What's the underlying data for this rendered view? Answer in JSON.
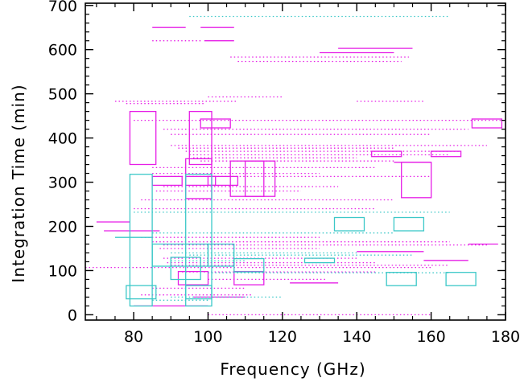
{
  "colors": {
    "magenta": "#e61ee6",
    "cyan": "#3cc8c8",
    "axis": "#000000"
  },
  "chart_data": {
    "type": "scatter",
    "title": "",
    "xlabel": "Frequency (GHz)",
    "ylabel": "Integration Time (min)",
    "xlim": [
      67,
      180
    ],
    "ylim": [
      -12,
      705
    ],
    "xticks": [
      "80",
      "100",
      "120",
      "140",
      "160",
      "180"
    ],
    "xtick_values": [
      80,
      100,
      120,
      140,
      160,
      180
    ],
    "yticks": [
      "0",
      "100",
      "200",
      "300",
      "400",
      "500",
      "600",
      "700"
    ],
    "ytick_values": [
      0,
      100,
      200,
      300,
      400,
      500,
      600,
      700
    ],
    "grid": false,
    "legend": "none",
    "series": [
      {
        "color": "magenta",
        "lines": [
          {
            "x1": 70,
            "x2": 79,
            "y": 210,
            "dashed": false
          },
          {
            "x1": 72,
            "x2": 87,
            "y": 190,
            "dashed": false
          },
          {
            "x1": 75,
            "x2": 108,
            "y": 483,
            "dashed": true
          },
          {
            "x1": 78,
            "x2": 99,
            "y": 478,
            "dashed": true
          },
          {
            "x1": 85,
            "x2": 94,
            "y": 650,
            "dashed": false
          },
          {
            "x1": 98,
            "x2": 107,
            "y": 650,
            "dashed": false
          },
          {
            "x1": 85,
            "x2": 98,
            "y": 620,
            "dashed": true
          },
          {
            "x1": 99,
            "x2": 107,
            "y": 620,
            "dashed": false
          },
          {
            "x1": 106,
            "x2": 154,
            "y": 583,
            "dashed": true
          },
          {
            "x1": 108,
            "x2": 152,
            "y": 573,
            "dashed": true
          },
          {
            "x1": 130,
            "x2": 150,
            "y": 593,
            "dashed": false
          },
          {
            "x1": 135,
            "x2": 155,
            "y": 603,
            "dashed": false
          },
          {
            "x1": 100,
            "x2": 120,
            "y": 493,
            "dashed": true
          },
          {
            "x1": 140,
            "x2": 158,
            "y": 483,
            "dashed": true
          },
          {
            "x1": 80,
            "x2": 180,
            "y": 440,
            "dashed": true
          },
          {
            "x1": 88,
            "x2": 170,
            "y": 420,
            "dashed": true
          },
          {
            "x1": 90,
            "x2": 160,
            "y": 408,
            "dashed": true
          },
          {
            "x1": 90,
            "x2": 175,
            "y": 383,
            "dashed": true
          },
          {
            "x1": 92,
            "x2": 150,
            "y": 377,
            "dashed": true
          },
          {
            "x1": 94,
            "x2": 168,
            "y": 370,
            "dashed": true
          },
          {
            "x1": 95,
            "x2": 165,
            "y": 362,
            "dashed": true
          },
          {
            "x1": 96,
            "x2": 140,
            "y": 355,
            "dashed": true
          },
          {
            "x1": 98,
            "x2": 150,
            "y": 348,
            "dashed": true
          },
          {
            "x1": 85,
            "x2": 145,
            "y": 333,
            "dashed": true
          },
          {
            "x1": 85,
            "x2": 130,
            "y": 320,
            "dashed": true
          },
          {
            "x1": 90,
            "x2": 160,
            "y": 313,
            "dashed": true
          },
          {
            "x1": 88,
            "x2": 135,
            "y": 290,
            "dashed": true
          },
          {
            "x1": 86,
            "x2": 125,
            "y": 280,
            "dashed": true
          },
          {
            "x1": 82,
            "x2": 150,
            "y": 260,
            "dashed": true
          },
          {
            "x1": 80,
            "x2": 145,
            "y": 240,
            "dashed": true
          },
          {
            "x1": 82,
            "x2": 130,
            "y": 175,
            "dashed": true
          },
          {
            "x1": 85,
            "x2": 165,
            "y": 165,
            "dashed": true
          },
          {
            "x1": 88,
            "x2": 175,
            "y": 158,
            "dashed": true
          },
          {
            "x1": 87,
            "x2": 130,
            "y": 150,
            "dashed": true
          },
          {
            "x1": 88,
            "x2": 140,
            "y": 128,
            "dashed": true
          },
          {
            "x1": 89,
            "x2": 145,
            "y": 118,
            "dashed": true
          },
          {
            "x1": 90,
            "x2": 165,
            "y": 112,
            "dashed": true
          },
          {
            "x1": 67,
            "x2": 160,
            "y": 107,
            "dashed": true
          },
          {
            "x1": 93,
            "x2": 145,
            "y": 97,
            "dashed": true
          },
          {
            "x1": 100,
            "x2": 132,
            "y": 80,
            "dashed": true
          },
          {
            "x1": 122,
            "x2": 135,
            "y": 72,
            "dashed": false
          },
          {
            "x1": 85,
            "x2": 110,
            "y": 60,
            "dashed": true
          },
          {
            "x1": 82,
            "x2": 112,
            "y": 45,
            "dashed": true
          },
          {
            "x1": 80,
            "x2": 100,
            "y": 20,
            "dashed": false
          },
          {
            "x1": 96,
            "x2": 110,
            "y": 40,
            "dashed": false
          },
          {
            "x1": 100,
            "x2": 160,
            "y": 0,
            "dashed": true
          },
          {
            "x1": 150,
            "x2": 160,
            "y": 345,
            "dashed": false
          },
          {
            "x1": 140,
            "x2": 158,
            "y": 143,
            "dashed": false
          },
          {
            "x1": 158,
            "x2": 170,
            "y": 123,
            "dashed": false
          },
          {
            "x1": 170,
            "x2": 178,
            "y": 160,
            "dashed": false
          }
        ],
        "boxes": [
          {
            "x1": 79,
            "x2": 86,
            "y1": 340,
            "y2": 460
          },
          {
            "x1": 95,
            "x2": 101,
            "y1": 340,
            "y2": 460
          },
          {
            "x1": 98,
            "x2": 106,
            "y1": 423,
            "y2": 443
          },
          {
            "x1": 171,
            "x2": 179,
            "y1": 423,
            "y2": 443
          },
          {
            "x1": 85,
            "x2": 93,
            "y1": 293,
            "y2": 313
          },
          {
            "x1": 94,
            "x2": 102,
            "y1": 293,
            "y2": 313
          },
          {
            "x1": 100,
            "x2": 108,
            "y1": 293,
            "y2": 313
          },
          {
            "x1": 94,
            "x2": 101,
            "y1": 263,
            "y2": 353
          },
          {
            "x1": 106,
            "x2": 115,
            "y1": 268,
            "y2": 348
          },
          {
            "x1": 110,
            "x2": 118,
            "y1": 268,
            "y2": 348
          },
          {
            "x1": 152,
            "x2": 160,
            "y1": 265,
            "y2": 345
          },
          {
            "x1": 144,
            "x2": 152,
            "y1": 358,
            "y2": 370
          },
          {
            "x1": 160,
            "x2": 168,
            "y1": 358,
            "y2": 370
          },
          {
            "x1": 92,
            "x2": 100,
            "y1": 68,
            "y2": 98
          },
          {
            "x1": 107,
            "x2": 115,
            "y1": 68,
            "y2": 98
          }
        ]
      },
      {
        "color": "cyan",
        "lines": [
          {
            "x1": 95,
            "x2": 165,
            "y": 675,
            "dashed": true
          },
          {
            "x1": 75,
            "x2": 85,
            "y": 175,
            "dashed": false
          },
          {
            "x1": 80,
            "x2": 165,
            "y": 232,
            "dashed": true
          },
          {
            "x1": 85,
            "x2": 150,
            "y": 185,
            "dashed": true
          },
          {
            "x1": 90,
            "x2": 140,
            "y": 140,
            "dashed": true
          },
          {
            "x1": 95,
            "x2": 155,
            "y": 135,
            "dashed": true
          },
          {
            "x1": 100,
            "x2": 165,
            "y": 95,
            "dashed": true
          },
          {
            "x1": 90,
            "x2": 120,
            "y": 40,
            "dashed": true
          },
          {
            "x1": 85,
            "x2": 100,
            "y": 33,
            "dashed": true
          },
          {
            "x1": 90,
            "x2": 110,
            "y": 122,
            "dashed": true
          }
        ],
        "boxes": [
          {
            "x1": 79,
            "x2": 85,
            "y1": 20,
            "y2": 318
          },
          {
            "x1": 78,
            "x2": 86,
            "y1": 36,
            "y2": 66
          },
          {
            "x1": 94,
            "x2": 101,
            "y1": 20,
            "y2": 318
          },
          {
            "x1": 94,
            "x2": 101,
            "y1": 36,
            "y2": 66
          },
          {
            "x1": 85,
            "x2": 100,
            "y1": 110,
            "y2": 160
          },
          {
            "x1": 90,
            "x2": 98,
            "y1": 80,
            "y2": 130
          },
          {
            "x1": 100,
            "x2": 107,
            "y1": 110,
            "y2": 160
          },
          {
            "x1": 107,
            "x2": 115,
            "y1": 97,
            "y2": 127
          },
          {
            "x1": 126,
            "x2": 134,
            "y1": 118,
            "y2": 128
          },
          {
            "x1": 134,
            "x2": 142,
            "y1": 190,
            "y2": 220
          },
          {
            "x1": 150,
            "x2": 158,
            "y1": 190,
            "y2": 220
          },
          {
            "x1": 148,
            "x2": 156,
            "y1": 66,
            "y2": 96
          },
          {
            "x1": 164,
            "x2": 172,
            "y1": 66,
            "y2": 96
          }
        ]
      }
    ]
  }
}
